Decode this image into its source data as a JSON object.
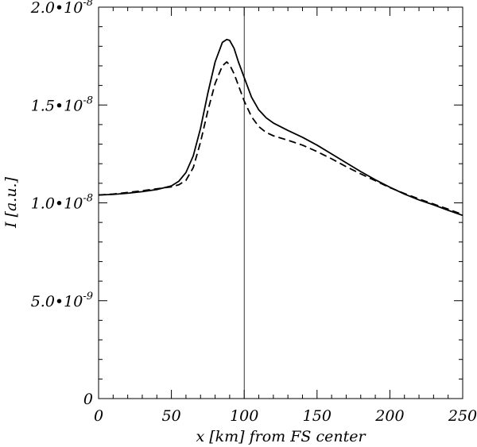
{
  "chart_data": {
    "type": "line",
    "xlabel": "x [km] from FS center",
    "ylabel": "I [a.u.]",
    "xlim": [
      0,
      250
    ],
    "ylim": [
      0,
      2e-08
    ],
    "x_ticks": [
      0,
      50,
      100,
      150,
      200,
      250
    ],
    "x_tick_labels": [
      "0",
      "50",
      "100",
      "150",
      "200",
      "250"
    ],
    "y_ticks": [
      0,
      5e-09,
      1e-08,
      1.5e-08,
      2e-08
    ],
    "y_tick_labels": [
      {
        "mantissa": "0",
        "exponent": ""
      },
      {
        "mantissa": "5.0•10",
        "exponent": "-9"
      },
      {
        "mantissa": "1.0•10",
        "exponent": "-8"
      },
      {
        "mantissa": "1.5•10",
        "exponent": "-8"
      },
      {
        "mantissa": "2.0•10",
        "exponent": "-8"
      }
    ],
    "x_minor_step": 10,
    "y_minor_step": 1e-09,
    "grid": false,
    "vertical_marker_x": 100,
    "series": [
      {
        "style": "solid",
        "points": [
          [
            0,
            1.04e-08
          ],
          [
            10,
            1.043e-08
          ],
          [
            20,
            1.049e-08
          ],
          [
            30,
            1.057e-08
          ],
          [
            40,
            1.068e-08
          ],
          [
            50,
            1.087e-08
          ],
          [
            55,
            1.11e-08
          ],
          [
            60,
            1.155e-08
          ],
          [
            65,
            1.24e-08
          ],
          [
            70,
            1.38e-08
          ],
          [
            75,
            1.56e-08
          ],
          [
            80,
            1.72e-08
          ],
          [
            85,
            1.82e-08
          ],
          [
            88,
            1.835e-08
          ],
          [
            90,
            1.83e-08
          ],
          [
            93,
            1.79e-08
          ],
          [
            96,
            1.72e-08
          ],
          [
            100,
            1.64e-08
          ],
          [
            105,
            1.54e-08
          ],
          [
            110,
            1.475e-08
          ],
          [
            115,
            1.435e-08
          ],
          [
            120,
            1.408e-08
          ],
          [
            130,
            1.37e-08
          ],
          [
            140,
            1.335e-08
          ],
          [
            150,
            1.295e-08
          ],
          [
            160,
            1.25e-08
          ],
          [
            170,
            1.205e-08
          ],
          [
            180,
            1.16e-08
          ],
          [
            190,
            1.118e-08
          ],
          [
            200,
            1.08e-08
          ],
          [
            210,
            1.045e-08
          ],
          [
            220,
            1.015e-08
          ],
          [
            230,
            9.9e-09
          ],
          [
            240,
            9.62e-09
          ],
          [
            250,
            9.36e-09
          ]
        ]
      },
      {
        "style": "dashed",
        "points": [
          [
            0,
            1.04e-08
          ],
          [
            10,
            1.045e-08
          ],
          [
            20,
            1.053e-08
          ],
          [
            30,
            1.062e-08
          ],
          [
            40,
            1.072e-08
          ],
          [
            50,
            1.082e-08
          ],
          [
            55,
            1.092e-08
          ],
          [
            60,
            1.115e-08
          ],
          [
            65,
            1.18e-08
          ],
          [
            70,
            1.31e-08
          ],
          [
            75,
            1.47e-08
          ],
          [
            80,
            1.61e-08
          ],
          [
            85,
            1.7e-08
          ],
          [
            88,
            1.72e-08
          ],
          [
            90,
            1.705e-08
          ],
          [
            93,
            1.66e-08
          ],
          [
            96,
            1.6e-08
          ],
          [
            100,
            1.52e-08
          ],
          [
            105,
            1.44e-08
          ],
          [
            110,
            1.39e-08
          ],
          [
            115,
            1.36e-08
          ],
          [
            120,
            1.343e-08
          ],
          [
            130,
            1.32e-08
          ],
          [
            140,
            1.295e-08
          ],
          [
            150,
            1.262e-08
          ],
          [
            160,
            1.225e-08
          ],
          [
            170,
            1.185e-08
          ],
          [
            180,
            1.148e-08
          ],
          [
            190,
            1.113e-08
          ],
          [
            200,
            1.078e-08
          ],
          [
            210,
            1.048e-08
          ],
          [
            220,
            1.02e-08
          ],
          [
            230,
            9.94e-09
          ],
          [
            240,
            9.68e-09
          ],
          [
            250,
            9.4e-09
          ]
        ]
      }
    ]
  }
}
